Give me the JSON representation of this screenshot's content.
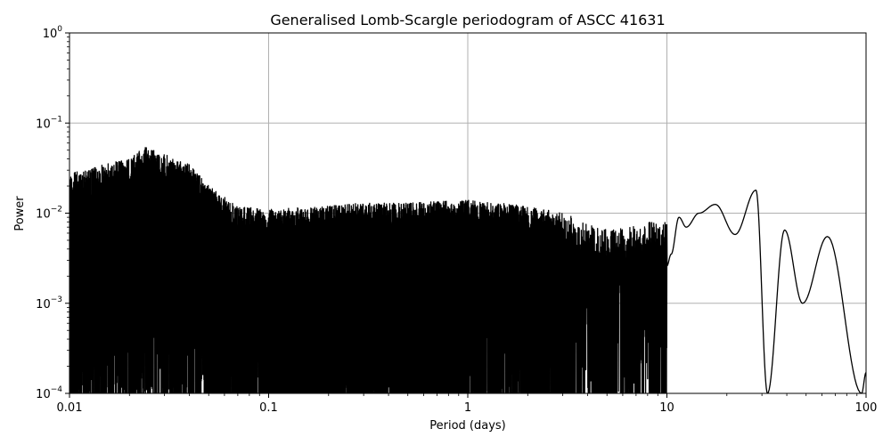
{
  "chart_data": {
    "type": "line",
    "title": "Generalised Lomb-Scargle periodogram of ASCC 41631",
    "xlabel": "Period (days)",
    "ylabel": "Power",
    "xscale": "log",
    "yscale": "log",
    "xlim": [
      0.01,
      100
    ],
    "ylim": [
      0.0001,
      1
    ],
    "grid": true,
    "legend": null,
    "x_ticks": [
      "0.01",
      "0.1",
      "1",
      "10",
      "100"
    ],
    "y_ticks": [
      {
        "base": "10",
        "exp": "0"
      },
      {
        "base": "10",
        "exp": "−1"
      },
      {
        "base": "10",
        "exp": "−2"
      },
      {
        "base": "10",
        "exp": "−3"
      },
      {
        "base": "10",
        "exp": "−4"
      }
    ],
    "series": [
      {
        "name": "GLS power",
        "color": "#000000",
        "description": "Dense noisy periodogram; upper envelope ~0.02-0.05 at short periods, ~0.008-0.015 from 0.1 to 3 d, smooth lobes beyond 10 d",
        "upper_envelope": {
          "x": [
            0.01,
            0.012,
            0.015,
            0.02,
            0.024,
            0.03,
            0.04,
            0.05,
            0.07,
            0.1,
            0.2,
            0.3,
            0.5,
            1,
            2,
            3,
            5,
            8
          ],
          "y": [
            0.028,
            0.03,
            0.035,
            0.04,
            0.055,
            0.045,
            0.035,
            0.02,
            0.012,
            0.011,
            0.012,
            0.013,
            0.013,
            0.014,
            0.012,
            0.01,
            0.0065,
            0.008
          ]
        },
        "long_period_peaks": {
          "x": [
            10.5,
            11.5,
            12.5,
            14.5,
            17.5,
            22,
            28,
            32,
            39,
            48,
            64,
            95,
            100
          ],
          "y": [
            0.0035,
            0.009,
            0.007,
            0.01,
            0.0125,
            0.0058,
            0.018,
            0.0001,
            0.0065,
            0.001,
            0.0055,
            0.0001,
            0.00017
          ]
        }
      }
    ]
  }
}
